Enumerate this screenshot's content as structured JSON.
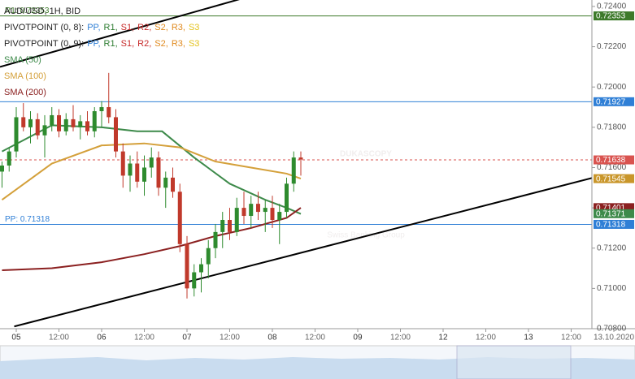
{
  "chart_data": {
    "type": "candlestick",
    "title": "AUD/USD, 1H, BID",
    "up_color": "#2e8b2e",
    "down_color": "#c0392b",
    "x": [
      -4,
      -2,
      0,
      2,
      4,
      6,
      8,
      10,
      12,
      14,
      16,
      18,
      20,
      22,
      24,
      26,
      28,
      30,
      32,
      34,
      36,
      38,
      40,
      42,
      44,
      46,
      48,
      50,
      52,
      54,
      56,
      58,
      60,
      62,
      64,
      66,
      68,
      70,
      72,
      74,
      76,
      78,
      80
    ],
    "open": [
      0.7158,
      0.7161,
      0.7168,
      0.7185,
      0.718,
      0.7184,
      0.7176,
      0.7181,
      0.7186,
      0.7178,
      0.7184,
      0.718,
      0.7183,
      0.7178,
      0.7188,
      0.719,
      0.7185,
      0.7168,
      0.7156,
      0.7162,
      0.7153,
      0.716,
      0.7165,
      0.715,
      0.7155,
      0.7148,
      0.7122,
      0.71,
      0.7108,
      0.7112,
      0.712,
      0.7128,
      0.7134,
      0.7128,
      0.714,
      0.7136,
      0.7142,
      0.7138,
      0.714,
      0.7134,
      0.7138,
      0.7152,
      0.7165
    ],
    "high": [
      0.7163,
      0.717,
      0.719,
      0.7192,
      0.7188,
      0.7187,
      0.7186,
      0.719,
      0.7189,
      0.7187,
      0.7191,
      0.7186,
      0.7188,
      0.719,
      0.7193,
      0.7207,
      0.7189,
      0.7172,
      0.7166,
      0.7168,
      0.7166,
      0.717,
      0.7168,
      0.7158,
      0.716,
      0.7152,
      0.7126,
      0.7112,
      0.7115,
      0.7124,
      0.7132,
      0.7138,
      0.714,
      0.7145,
      0.7148,
      0.7146,
      0.7148,
      0.7144,
      0.7146,
      0.7142,
      0.7155,
      0.7168,
      0.7168
    ],
    "low": [
      0.715,
      0.7158,
      0.7165,
      0.7178,
      0.7172,
      0.7174,
      0.7165,
      0.7178,
      0.7175,
      0.7176,
      0.7178,
      0.7174,
      0.7176,
      0.7175,
      0.718,
      0.7182,
      0.7165,
      0.715,
      0.7148,
      0.715,
      0.7146,
      0.7155,
      0.7146,
      0.714,
      0.7145,
      0.7118,
      0.7095,
      0.7096,
      0.7098,
      0.7105,
      0.7115,
      0.712,
      0.7124,
      0.7126,
      0.7132,
      0.713,
      0.7134,
      0.7128,
      0.713,
      0.7122,
      0.7135,
      0.7148,
      0.7156
    ],
    "close": [
      0.7161,
      0.7168,
      0.7185,
      0.718,
      0.7184,
      0.7176,
      0.7181,
      0.7186,
      0.7178,
      0.7184,
      0.718,
      0.7183,
      0.7178,
      0.7188,
      0.719,
      0.7185,
      0.7168,
      0.7156,
      0.7162,
      0.7153,
      0.716,
      0.7165,
      0.715,
      0.7155,
      0.7148,
      0.7122,
      0.71,
      0.7108,
      0.7112,
      0.712,
      0.7128,
      0.7134,
      0.7128,
      0.714,
      0.7136,
      0.7142,
      0.7138,
      0.714,
      0.7134,
      0.7138,
      0.7152,
      0.7165,
      0.7164
    ],
    "overlays": [
      {
        "name": "SMA (50)",
        "color": "#3d8a4a",
        "x": [
          -4,
          10,
          24,
          34,
          41,
          50,
          60,
          70,
          76,
          80
        ],
        "values": [
          0.7168,
          0.7181,
          0.718,
          0.7178,
          0.7178,
          0.7165,
          0.7152,
          0.7144,
          0.714,
          0.7137
        ]
      },
      {
        "name": "SMA (100)",
        "color": "#d4a03a",
        "x": [
          -4,
          10,
          24,
          36,
          46,
          56,
          66,
          76,
          80
        ],
        "values": [
          0.7144,
          0.7162,
          0.7171,
          0.7172,
          0.717,
          0.7163,
          0.716,
          0.7157,
          0.71545
        ]
      },
      {
        "name": "SMA (200)",
        "color": "#8b2020",
        "x": [
          -4,
          10,
          24,
          36,
          46,
          56,
          66,
          76,
          80
        ],
        "values": [
          0.7109,
          0.711,
          0.7113,
          0.7117,
          0.7121,
          0.7126,
          0.713,
          0.7135,
          0.714
        ]
      }
    ],
    "pivot_legends": [
      {
        "label": "PIVOTPOINT (0, 8):",
        "items": [
          {
            "text": "PP,",
            "color": "#2f7fd6"
          },
          {
            "text": "R1,",
            "color": "#2e7d32"
          },
          {
            "text": "S1,",
            "color": "#c62828"
          },
          {
            "text": "R2,",
            "color": "#c62828"
          },
          {
            "text": "S2,",
            "color": "#e08a1e"
          },
          {
            "text": "R3,",
            "color": "#e08a1e"
          },
          {
            "text": "S3",
            "color": "#e3c21c"
          }
        ]
      },
      {
        "label": "PIVOTPOINT (0, 9):",
        "items": [
          {
            "text": "PP,",
            "color": "#2f7fd6"
          },
          {
            "text": "R1,",
            "color": "#2e7d32"
          },
          {
            "text": "S1,",
            "color": "#c62828"
          },
          {
            "text": "R2,",
            "color": "#c62828"
          },
          {
            "text": "S2,",
            "color": "#e08a1e"
          },
          {
            "text": "R3,",
            "color": "#e08a1e"
          },
          {
            "text": "S3",
            "color": "#e3c21c"
          }
        ]
      }
    ],
    "levels": [
      {
        "value": 0.72353,
        "label": "0.72353",
        "color": "#3d7a2a",
        "line_style": "solid",
        "caption": "R1: 0.72353"
      },
      {
        "value": 0.71927,
        "label": "0.71927",
        "color": "#2f7fd6",
        "line_style": "solid"
      },
      {
        "value": 0.71638,
        "label": "0.71638",
        "color": "#d9534f",
        "line_style": "dashed"
      },
      {
        "value": 0.71545,
        "label": "0.71545",
        "color": "#c9962a",
        "line_style": "none"
      },
      {
        "value": 0.71401,
        "label": "0.71401",
        "color": "#8b2020",
        "line_style": "none"
      },
      {
        "value": 0.71371,
        "label": "0.71371",
        "color": "#3d8a4a",
        "line_style": "none"
      },
      {
        "value": 0.71318,
        "label": "0.71318",
        "color": "#2f7fd6",
        "line_style": "solid",
        "caption": "PP: 0.71318"
      }
    ],
    "trend_lines": [
      {
        "x": [
          -4.57,
          64
        ],
        "y": [
          0.721,
          0.72442
        ],
        "color": "#000000"
      },
      {
        "x": [
          -0.57,
          161.83
        ],
        "y": [
          0.70811,
          0.71548
        ],
        "color": "#000000"
      }
    ],
    "watermark": [
      "DUKASCOPY",
      "Swiss Banking Group"
    ],
    "xlim": [
      -4.57,
      161.83
    ],
    "ylim": [
      0.708,
      0.72432
    ],
    "xticks": [
      {
        "value": 0,
        "label": "05"
      },
      {
        "value": 12,
        "label": "12:00"
      },
      {
        "value": 24,
        "label": "06"
      },
      {
        "value": 36,
        "label": "12:00"
      },
      {
        "value": 48,
        "label": "07"
      },
      {
        "value": 60,
        "label": "12:00"
      },
      {
        "value": 72,
        "label": "08"
      },
      {
        "value": 84,
        "label": "12:00"
      },
      {
        "value": 96,
        "label": "09"
      },
      {
        "value": 108,
        "label": "12:00"
      },
      {
        "value": 120,
        "label": "12"
      },
      {
        "value": 132,
        "label": "12:00"
      },
      {
        "value": 144,
        "label": "13"
      },
      {
        "value": 156,
        "label": "12:00"
      },
      {
        "value": 168,
        "label": "13.10.2020"
      }
    ],
    "yticks": [
      {
        "value": 0.724,
        "label": "0.72400"
      },
      {
        "value": 0.722,
        "label": "0.72200"
      },
      {
        "value": 0.72,
        "label": "0.72000"
      },
      {
        "value": 0.718,
        "label": "0.71800"
      },
      {
        "value": 0.716,
        "label": "0.71600"
      },
      {
        "value": 0.714,
        "label": "0.71400"
      },
      {
        "value": 0.712,
        "label": "0.71200"
      },
      {
        "value": 0.71,
        "label": "0.71000"
      },
      {
        "value": 0.708,
        "label": "0.70800"
      }
    ],
    "grid": false
  }
}
